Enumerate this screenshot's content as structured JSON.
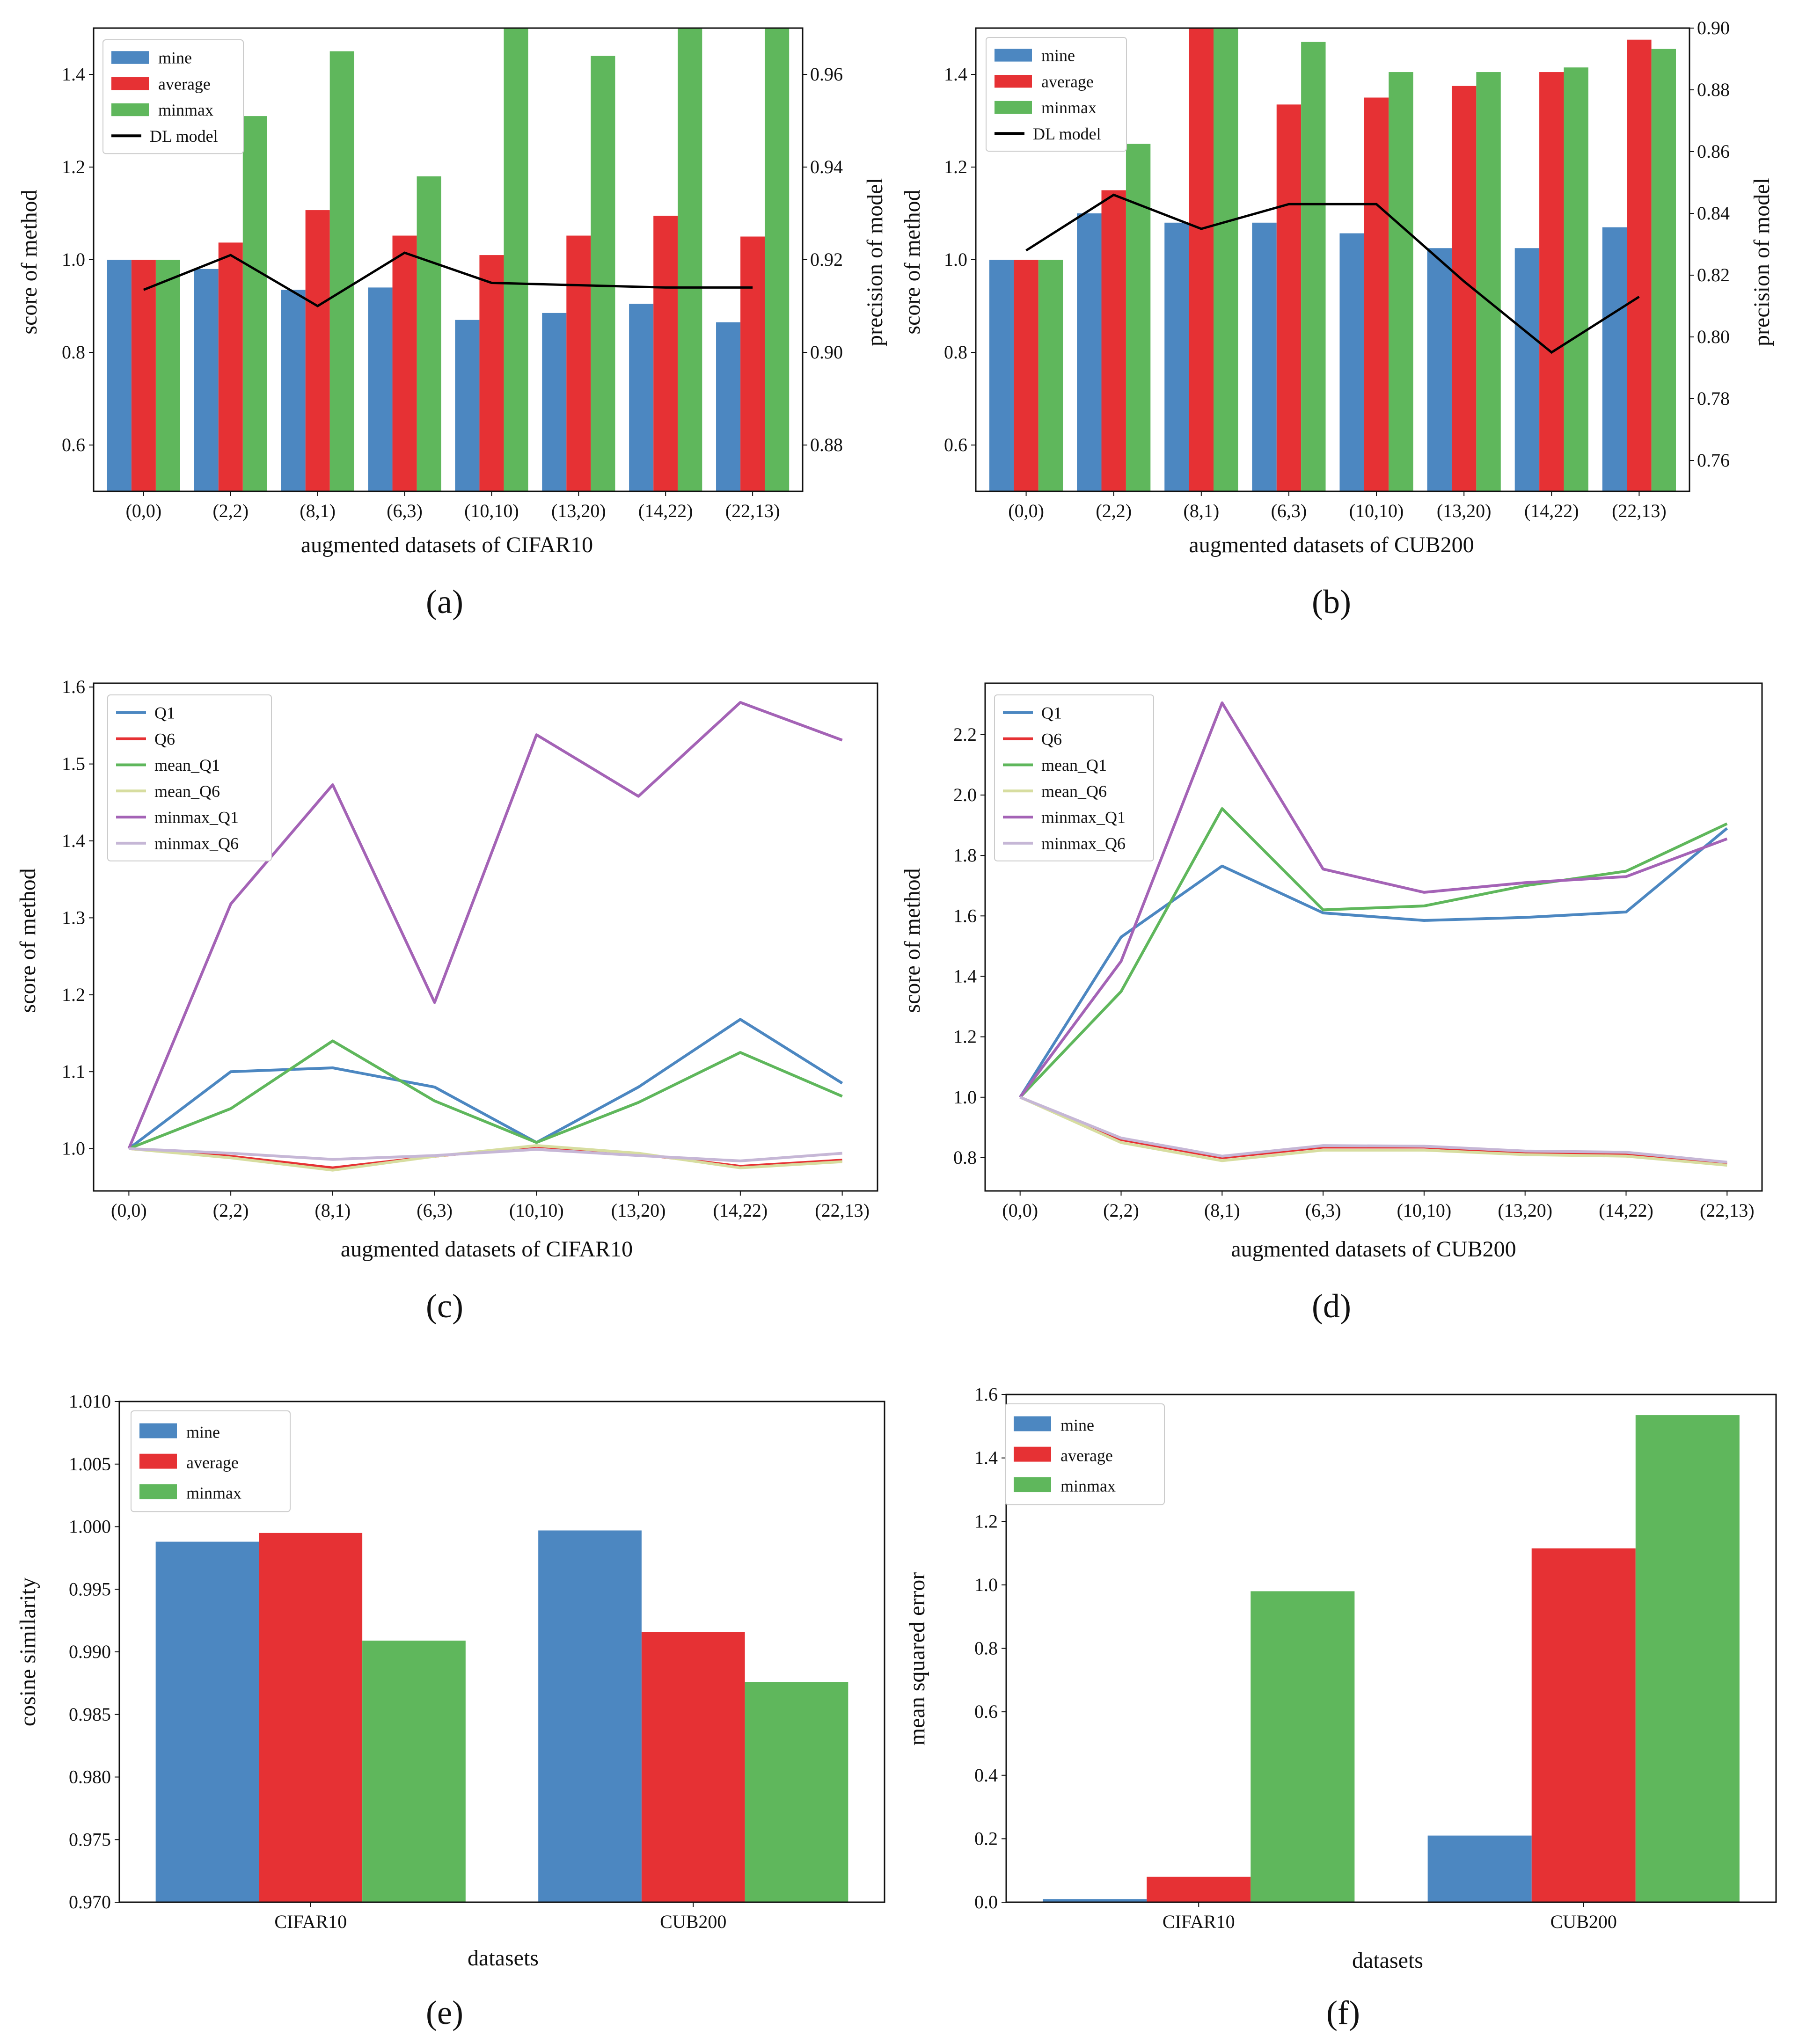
{
  "colors": {
    "mine": "#4c87c1",
    "average": "#e63134",
    "minmax": "#5fb75c",
    "dl": "#000000",
    "Q1": "#4c87c1",
    "Q6": "#e63134",
    "mean_Q1": "#5fb75c",
    "mean_Q6": "#d7dda0",
    "minmax_Q1": "#a463b6",
    "minmax_Q6": "#c6b7d6"
  },
  "chart_data": [
    {
      "id": "a",
      "type": "bar",
      "caption": "(a)",
      "categories": [
        "(0,0)",
        "(2,2)",
        "(8,1)",
        "(6,3)",
        "(10,10)",
        "(13,20)",
        "(14,22)",
        "(22,13)"
      ],
      "xlabel": "augmented datasets of CIFAR10",
      "ylabel": "score of method",
      "y2label": "precision of model",
      "ylim": [
        0.5,
        1.5
      ],
      "yticks": [
        0.6,
        0.8,
        1.0,
        1.2,
        1.4
      ],
      "y2lim": [
        0.87,
        0.97
      ],
      "y2ticks": [
        0.88,
        0.9,
        0.92,
        0.94,
        0.96
      ],
      "series": [
        {
          "name": "mine",
          "values": [
            1.0,
            0.98,
            0.935,
            0.94,
            0.87,
            0.885,
            0.905,
            0.865
          ]
        },
        {
          "name": "average",
          "values": [
            1.0,
            1.037,
            1.107,
            1.052,
            1.01,
            1.052,
            1.095,
            1.05
          ]
        },
        {
          "name": "minmax",
          "values": [
            1.0,
            1.31,
            1.45,
            1.18,
            1.5,
            1.44,
            1.5,
            1.5
          ]
        }
      ],
      "line": {
        "name": "DL model",
        "values": [
          0.9135,
          0.921,
          0.91,
          0.9215,
          0.915,
          0.9145,
          0.914,
          0.914
        ]
      },
      "legend": [
        "mine",
        "average",
        "minmax",
        "DL model"
      ]
    },
    {
      "id": "b",
      "type": "bar",
      "caption": "(b)",
      "categories": [
        "(0,0)",
        "(2,2)",
        "(8,1)",
        "(6,3)",
        "(10,10)",
        "(13,20)",
        "(14,22)",
        "(22,13)"
      ],
      "xlabel": "augmented datasets of CUB200",
      "ylabel": "score of method",
      "y2label": "precision of model",
      "ylim": [
        0.5,
        1.5
      ],
      "yticks": [
        0.6,
        0.8,
        1.0,
        1.2,
        1.4
      ],
      "y2lim": [
        0.75,
        0.9
      ],
      "y2ticks": [
        0.76,
        0.78,
        0.8,
        0.82,
        0.84,
        0.86,
        0.88,
        0.9
      ],
      "series": [
        {
          "name": "mine",
          "values": [
            1.0,
            1.1,
            1.08,
            1.08,
            1.057,
            1.025,
            1.025,
            1.07
          ]
        },
        {
          "name": "average",
          "values": [
            1.0,
            1.15,
            1.5,
            1.335,
            1.35,
            1.375,
            1.405,
            1.475
          ]
        },
        {
          "name": "minmax",
          "values": [
            1.0,
            1.25,
            1.5,
            1.47,
            1.405,
            1.405,
            1.415,
            1.455
          ]
        }
      ],
      "line": {
        "name": "DL model",
        "values": [
          0.828,
          0.846,
          0.835,
          0.843,
          0.843,
          0.818,
          0.795,
          0.813
        ]
      },
      "legend": [
        "mine",
        "average",
        "minmax",
        "DL model"
      ]
    },
    {
      "id": "c",
      "type": "line",
      "caption": "(c)",
      "categories": [
        "(0,0)",
        "(2,2)",
        "(8,1)",
        "(6,3)",
        "(10,10)",
        "(13,20)",
        "(14,22)",
        "(22,13)"
      ],
      "xlabel": "augmented datasets of CIFAR10",
      "ylabel": "score of method",
      "ylim": [
        0.945,
        1.605
      ],
      "yticks": [
        1.0,
        1.1,
        1.2,
        1.3,
        1.4,
        1.5,
        1.6
      ],
      "series": [
        {
          "name": "Q1",
          "values": [
            1.0,
            1.1,
            1.105,
            1.08,
            1.008,
            1.08,
            1.168,
            1.085
          ]
        },
        {
          "name": "Q6",
          "values": [
            1.0,
            0.99,
            0.975,
            0.99,
            1.003,
            0.993,
            0.977,
            0.985
          ]
        },
        {
          "name": "mean_Q1",
          "values": [
            1.0,
            1.052,
            1.14,
            1.062,
            1.008,
            1.06,
            1.125,
            1.068
          ]
        },
        {
          "name": "mean_Q6",
          "values": [
            1.0,
            0.988,
            0.972,
            0.99,
            1.004,
            0.994,
            0.975,
            0.983
          ]
        },
        {
          "name": "minmax_Q1",
          "values": [
            1.0,
            1.318,
            1.473,
            1.19,
            1.538,
            1.458,
            1.58,
            1.531
          ]
        },
        {
          "name": "minmax_Q6",
          "values": [
            1.0,
            0.994,
            0.986,
            0.991,
            0.999,
            0.991,
            0.984,
            0.994
          ]
        }
      ]
    },
    {
      "id": "d",
      "type": "line",
      "caption": "(d)",
      "categories": [
        "(0,0)",
        "(2,2)",
        "(8,1)",
        "(6,3)",
        "(10,10)",
        "(13,20)",
        "(14,22)",
        "(22,13)"
      ],
      "xlabel": "augmented datasets of CUB200",
      "ylabel": "score of method",
      "ylim": [
        0.69,
        2.37
      ],
      "yticks": [
        0.8,
        1.0,
        1.2,
        1.4,
        1.6,
        1.8,
        2.0,
        2.2
      ],
      "series": [
        {
          "name": "Q1",
          "values": [
            1.0,
            1.53,
            1.765,
            1.61,
            1.585,
            1.595,
            1.613,
            1.89
          ]
        },
        {
          "name": "Q6",
          "values": [
            1.0,
            0.86,
            0.8,
            0.835,
            0.835,
            0.815,
            0.81,
            0.78
          ]
        },
        {
          "name": "mean_Q1",
          "values": [
            1.0,
            1.35,
            1.955,
            1.62,
            1.633,
            1.7,
            1.748,
            1.905
          ]
        },
        {
          "name": "mean_Q6",
          "values": [
            1.0,
            0.85,
            0.79,
            0.825,
            0.825,
            0.81,
            0.805,
            0.775
          ]
        },
        {
          "name": "minmax_Q1",
          "values": [
            1.0,
            1.45,
            2.305,
            1.755,
            1.678,
            1.71,
            1.73,
            1.855
          ]
        },
        {
          "name": "minmax_Q6",
          "values": [
            1.0,
            0.865,
            0.805,
            0.84,
            0.838,
            0.822,
            0.818,
            0.785
          ]
        }
      ]
    },
    {
      "id": "e",
      "type": "bar",
      "caption": "(e)",
      "categories": [
        "CIFAR10",
        "CUB200"
      ],
      "xlabel": "datasets",
      "ylabel": "cosine similarity",
      "ylim": [
        0.97,
        1.01
      ],
      "yticks": [
        0.97,
        0.975,
        0.98,
        0.985,
        0.99,
        0.995,
        1.0,
        1.005,
        1.01
      ],
      "series": [
        {
          "name": "mine",
          "values": [
            0.9988,
            0.9997
          ]
        },
        {
          "name": "average",
          "values": [
            0.9995,
            0.9916
          ]
        },
        {
          "name": "minmax",
          "values": [
            0.9909,
            0.9876
          ]
        }
      ],
      "legend": [
        "mine",
        "average",
        "minmax"
      ]
    },
    {
      "id": "f",
      "type": "bar",
      "caption": "(f)",
      "categories": [
        "CIFAR10",
        "CUB200"
      ],
      "xlabel": "datasets",
      "ylabel": "mean squared error",
      "ylim": [
        0.0,
        1.6
      ],
      "yticks": [
        0.0,
        0.2,
        0.4,
        0.6,
        0.8,
        1.0,
        1.2,
        1.4,
        1.6
      ],
      "series": [
        {
          "name": "mine",
          "values": [
            0.01,
            0.21
          ]
        },
        {
          "name": "average",
          "values": [
            0.08,
            1.115
          ]
        },
        {
          "name": "minmax",
          "values": [
            0.98,
            1.535
          ]
        }
      ],
      "legend": [
        "mine",
        "average",
        "minmax"
      ]
    }
  ]
}
